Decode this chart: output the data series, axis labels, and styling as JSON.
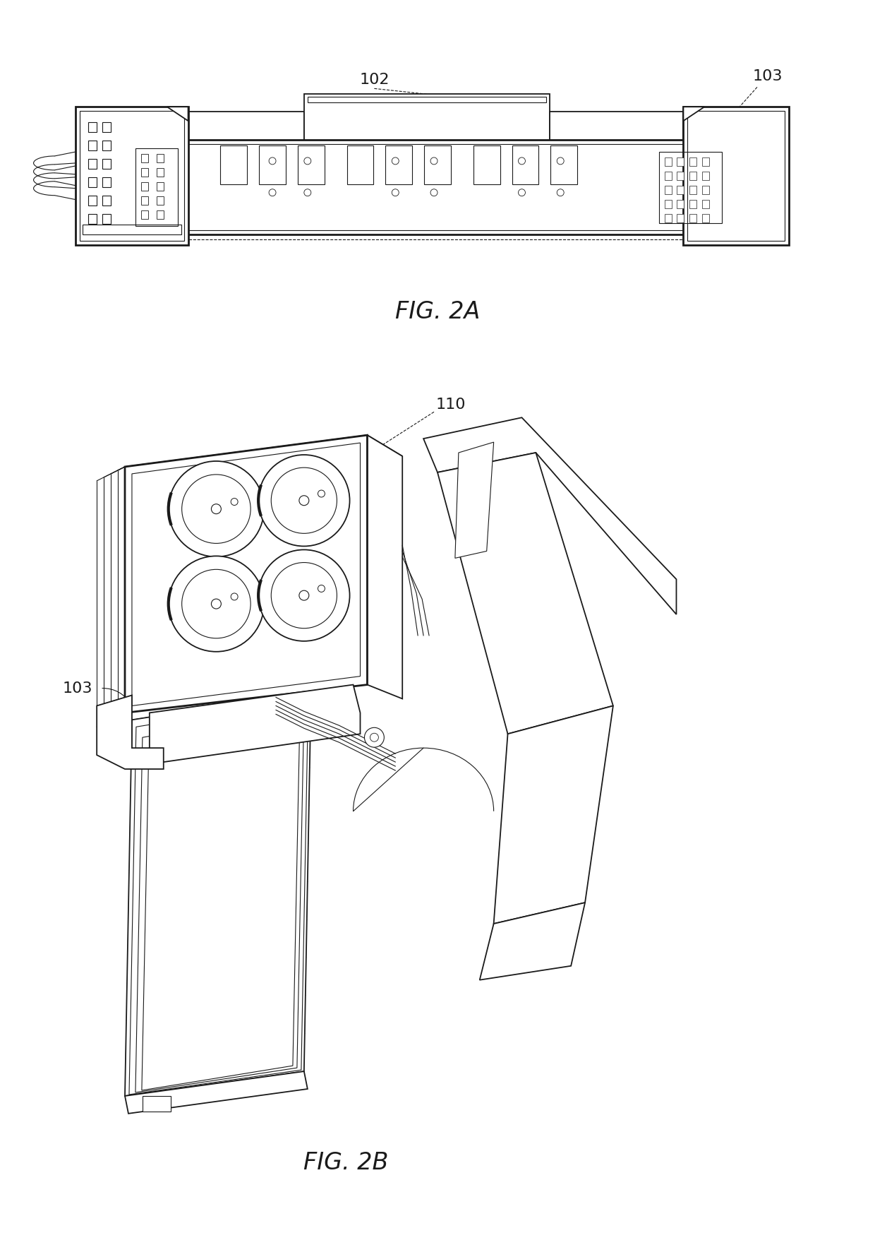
{
  "fig_width": 12.4,
  "fig_height": 17.46,
  "dpi": 100,
  "bg_color": "#ffffff",
  "line_color": "#1a1a1a",
  "label_102": "102",
  "label_103": "103",
  "label_110": "110",
  "label_103b": "103",
  "fig2a_label": "FIG. 2A",
  "fig2b_label": "FIG. 2B"
}
